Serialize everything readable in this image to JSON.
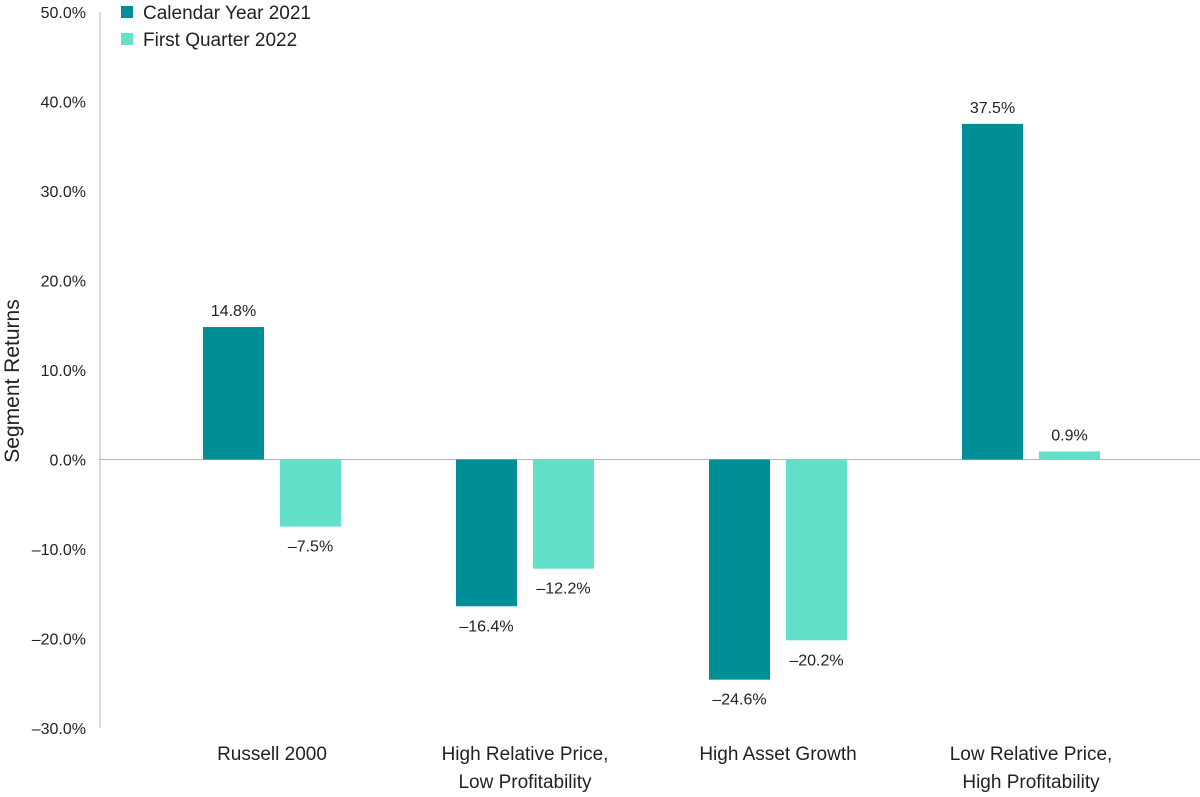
{
  "chart_data": {
    "type": "bar",
    "title": "",
    "ylabel": "Segment Returns",
    "xlabel": "",
    "ylim": [
      -30,
      50
    ],
    "yticks": [
      50,
      40,
      30,
      20,
      10,
      0,
      -10,
      -20,
      -30
    ],
    "ytick_labels": [
      "50.0%",
      "40.0%",
      "30.0%",
      "20.0%",
      "10.0%",
      "0.0%",
      "–10.0%",
      "–20.0%",
      "–30.0%"
    ],
    "categories": [
      [
        "Russell 2000"
      ],
      [
        "High Relative Price,",
        "Low Profitability"
      ],
      [
        "High Asset Growth"
      ],
      [
        "Low Relative Price,",
        "High Profitability"
      ]
    ],
    "series": [
      {
        "name": "Calendar Year 2021",
        "color": "#008f97",
        "values": [
          14.8,
          -16.4,
          -24.6,
          37.5
        ],
        "labels": [
          "14.8%",
          "–16.4%",
          "–24.6%",
          "37.5%"
        ]
      },
      {
        "name": "First Quarter 2022",
        "color": "#63e0c9",
        "values": [
          -7.5,
          -12.2,
          -20.2,
          0.9
        ],
        "labels": [
          "–7.5%",
          "–12.2%",
          "–20.2%",
          "0.9%"
        ]
      }
    ],
    "legend_position": "top-left",
    "grid": false
  }
}
